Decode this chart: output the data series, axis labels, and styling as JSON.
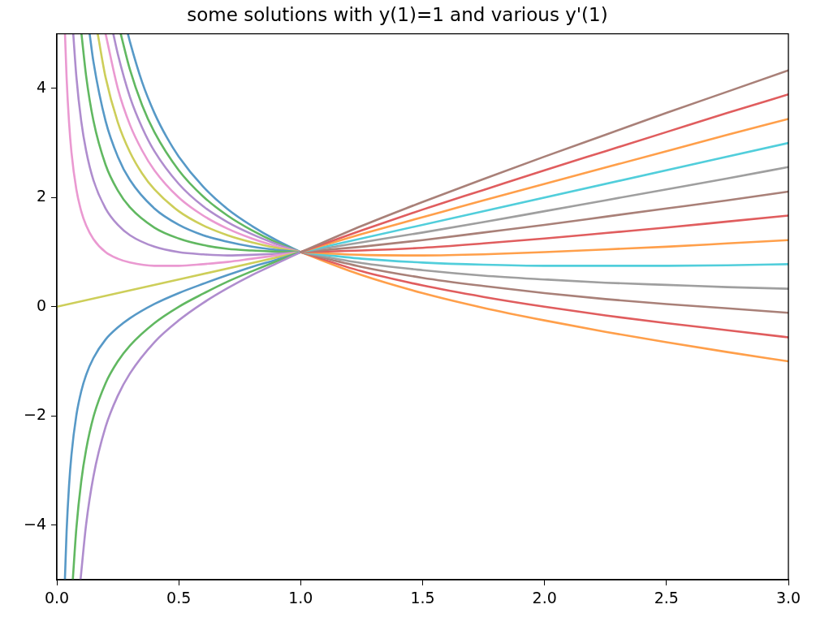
{
  "chart_data": {
    "type": "line",
    "title": "some solutions with y(1)=1 and various y'(1)",
    "xlim": [
      0,
      3
    ],
    "ylim": [
      -5,
      5
    ],
    "xticks": [
      {
        "value": 0,
        "label": "0.0"
      },
      {
        "value": 0.5,
        "label": "0.5"
      },
      {
        "value": 1,
        "label": "1.0"
      },
      {
        "value": 1.5,
        "label": "1.5"
      },
      {
        "value": 2,
        "label": "2.0"
      },
      {
        "value": 2.5,
        "label": "2.5"
      },
      {
        "value": 3,
        "label": "3.0"
      }
    ],
    "yticks": [
      {
        "value": -4,
        "label": "−4"
      },
      {
        "value": -2,
        "label": "−2"
      },
      0,
      2,
      4
    ],
    "grid": false,
    "legend": false,
    "marker": "none",
    "line_style": "solid",
    "series": [
      {
        "color": "#5799c7",
        "x": [
          0.2915,
          0.3,
          0.35,
          0.4,
          0.45,
          0.5,
          0.6,
          0.7,
          0.8,
          0.9,
          1
        ],
        "values": [
          5,
          4.85,
          4.11,
          3.55,
          3.11,
          2.75,
          2.2,
          1.79,
          1.48,
          1.22,
          1
        ]
      },
      {
        "color": "#ff9f4a",
        "x": [
          1,
          1.25,
          1.5,
          1.75,
          2,
          2.25,
          2.5,
          2.75,
          3
        ],
        "values": [
          1,
          0.58,
          0.25,
          -0.02,
          -0.25,
          -0.46,
          -0.65,
          -0.83,
          -1
        ]
      },
      {
        "color": "#61b861",
        "x": [
          0.262,
          0.3,
          0.35,
          0.4,
          0.5,
          0.6,
          0.7,
          0.8,
          0.9,
          1
        ],
        "values": [
          5,
          4.34,
          3.69,
          3.2,
          2.5,
          2.02,
          1.67,
          1.4,
          1.18,
          1
        ]
      },
      {
        "color": "#e05d5e",
        "x": [
          1,
          1.25,
          1.5,
          1.75,
          2,
          2.25,
          2.5,
          2.75,
          3
        ],
        "values": [
          1,
          0.65,
          0.39,
          0.18,
          0,
          -0.16,
          -0.3,
          -0.43,
          -0.56
        ]
      },
      {
        "color": "#af8dce",
        "x": [
          0.2315,
          0.25,
          0.3,
          0.35,
          0.4,
          0.5,
          0.6,
          0.7,
          0.8,
          0.9,
          1
        ],
        "values": [
          5,
          4.63,
          3.84,
          3.28,
          2.85,
          2.25,
          1.84,
          1.55,
          1.33,
          1.15,
          1
        ]
      },
      {
        "color": "#a98078",
        "x": [
          1,
          1.25,
          1.5,
          1.75,
          2,
          2.25,
          2.5,
          2.75,
          3
        ],
        "values": [
          1,
          0.73,
          0.53,
          0.38,
          0.25,
          0.14,
          0.05,
          -0.03,
          -0.11
        ]
      },
      {
        "color": "#ea99d1",
        "x": [
          0.2,
          0.25,
          0.3,
          0.35,
          0.4,
          0.5,
          0.6,
          0.7,
          0.8,
          0.9,
          1
        ],
        "values": [
          5,
          4,
          3.33,
          2.86,
          2.5,
          2,
          1.67,
          1.43,
          1.25,
          1.11,
          1
        ]
      },
      {
        "color": "#9f9f9f",
        "x": [
          1,
          1.25,
          1.5,
          1.75,
          2,
          2.25,
          2.5,
          2.75,
          3
        ],
        "values": [
          1,
          0.8,
          0.67,
          0.57,
          0.5,
          0.44,
          0.4,
          0.36,
          0.33
        ]
      },
      {
        "color": "#cdce59",
        "x": [
          0.1676,
          0.2,
          0.25,
          0.3,
          0.35,
          0.4,
          0.5,
          0.6,
          0.7,
          0.8,
          0.9,
          1
        ],
        "values": [
          5,
          4.2,
          3.38,
          2.83,
          2.44,
          2.15,
          1.75,
          1.49,
          1.31,
          1.18,
          1.08,
          1
        ]
      },
      {
        "color": "#51cedb",
        "x": [
          1,
          1.25,
          1.5,
          1.75,
          2,
          2.25,
          2.5,
          2.75,
          3
        ],
        "values": [
          1,
          0.88,
          0.81,
          0.77,
          0.75,
          0.75,
          0.75,
          0.76,
          0.78
        ]
      },
      {
        "color": "#5799c7",
        "x": [
          0.1345,
          0.15,
          0.2,
          0.25,
          0.3,
          0.4,
          0.5,
          0.6,
          0.7,
          0.8,
          0.9,
          1
        ],
        "values": [
          5,
          4.49,
          3.4,
          2.75,
          2.32,
          1.8,
          1.5,
          1.31,
          1.19,
          1.1,
          1.04,
          1
        ]
      },
      {
        "color": "#ff9f4a",
        "x": [
          1,
          1.25,
          1.5,
          1.75,
          2,
          2.25,
          2.5,
          2.75,
          3
        ],
        "values": [
          1,
          0.95,
          0.94,
          0.96,
          1,
          1.05,
          1.1,
          1.16,
          1.22
        ]
      },
      {
        "color": "#61b861",
        "x": [
          0.101,
          0.12,
          0.15,
          0.2,
          0.25,
          0.3,
          0.4,
          0.5,
          0.6,
          0.7,
          0.8,
          0.9,
          1
        ],
        "values": [
          5,
          4.23,
          3.41,
          2.6,
          2.13,
          1.82,
          1.45,
          1.25,
          1.13,
          1.06,
          1.03,
          1.01,
          1
        ]
      },
      {
        "color": "#e05d5e",
        "x": [
          1,
          1.25,
          1.5,
          1.75,
          2,
          2.25,
          2.5,
          2.75,
          3
        ],
        "values": [
          1,
          1.03,
          1.08,
          1.16,
          1.25,
          1.35,
          1.45,
          1.56,
          1.67
        ]
      },
      {
        "color": "#af8dce",
        "x": [
          0.0673,
          0.08,
          0.1,
          0.12,
          0.15,
          0.2,
          0.25,
          0.3,
          0.4,
          0.5,
          0.6,
          0.7,
          0.8,
          0.9,
          1
        ],
        "values": [
          5,
          4.22,
          3.4,
          2.86,
          2.32,
          1.8,
          1.5,
          1.31,
          1.1,
          1,
          0.96,
          0.94,
          0.95,
          0.97,
          1
        ]
      },
      {
        "color": "#a98078",
        "x": [
          1,
          1.25,
          1.5,
          1.75,
          2,
          2.25,
          2.5,
          2.75,
          3
        ],
        "values": [
          1,
          1.1,
          1.22,
          1.36,
          1.5,
          1.65,
          1.8,
          1.95,
          2.11
        ]
      },
      {
        "color": "#ea99d1",
        "x": [
          0.0335,
          0.04,
          0.05,
          0.06,
          0.08,
          0.1,
          0.12,
          0.15,
          0.2,
          0.25,
          0.3,
          0.4,
          0.5,
          0.6,
          0.7,
          0.8,
          0.9,
          1
        ],
        "values": [
          5,
          4.2,
          3.38,
          2.83,
          2.15,
          1.75,
          1.49,
          1.24,
          1,
          0.88,
          0.81,
          0.75,
          0.75,
          0.78,
          0.82,
          0.88,
          0.94,
          1
        ]
      },
      {
        "color": "#9f9f9f",
        "x": [
          1,
          1.25,
          1.5,
          1.75,
          2,
          2.25,
          2.5,
          2.75,
          3
        ],
        "values": [
          1,
          1.18,
          1.36,
          1.55,
          1.75,
          1.95,
          2.15,
          2.35,
          2.56
        ]
      },
      {
        "color": "#cdce59",
        "x": [
          0,
          1
        ],
        "values": [
          0,
          1
        ]
      },
      {
        "color": "#51cedb",
        "x": [
          1,
          3
        ],
        "values": [
          1,
          3
        ]
      },
      {
        "color": "#5799c7",
        "x": [
          0.0331,
          0.04,
          0.05,
          0.06,
          0.08,
          0.1,
          0.12,
          0.15,
          0.2,
          0.25,
          0.3,
          0.4,
          0.5,
          0.6,
          0.7,
          0.8,
          0.9,
          1
        ],
        "values": [
          -5,
          -4.12,
          -3.28,
          -2.71,
          -1.99,
          -1.55,
          -1.25,
          -0.94,
          -0.6,
          -0.38,
          -0.21,
          0.05,
          0.25,
          0.42,
          0.58,
          0.73,
          0.86,
          1
        ]
      },
      {
        "color": "#ff9f4a",
        "x": [
          1,
          1.25,
          1.5,
          1.75,
          2,
          2.25,
          2.5,
          2.75,
          3
        ],
        "values": [
          1,
          1.33,
          1.64,
          1.95,
          2.25,
          2.55,
          2.85,
          3.15,
          3.44
        ]
      },
      {
        "color": "#61b861",
        "x": [
          0.0655,
          0.08,
          0.1,
          0.12,
          0.15,
          0.2,
          0.25,
          0.3,
          0.4,
          0.5,
          0.6,
          0.7,
          0.8,
          0.9,
          1
        ],
        "values": [
          -5,
          -4.06,
          -3.2,
          -2.62,
          -2.02,
          -1.4,
          -1,
          -0.71,
          -0.3,
          0,
          0.24,
          0.46,
          0.65,
          0.83,
          1
        ]
      },
      {
        "color": "#e05d5e",
        "x": [
          1,
          1.25,
          1.5,
          1.75,
          2,
          2.25,
          2.5,
          2.75,
          3
        ],
        "values": [
          1,
          1.4,
          1.78,
          2.14,
          2.5,
          2.85,
          3.2,
          3.55,
          3.89
        ]
      },
      {
        "color": "#af8dce",
        "x": [
          0.0972,
          0.12,
          0.15,
          0.2,
          0.25,
          0.3,
          0.4,
          0.5,
          0.6,
          0.7,
          0.8,
          0.9,
          1
        ],
        "values": [
          -5,
          -3.99,
          -3.11,
          -2.2,
          -1.63,
          -1.22,
          -0.65,
          -0.25,
          0.07,
          0.34,
          0.58,
          0.79,
          1
        ]
      },
      {
        "color": "#a98078",
        "x": [
          1,
          1.25,
          1.5,
          1.75,
          2,
          2.25,
          2.5,
          2.75,
          3
        ],
        "values": [
          1,
          1.48,
          1.92,
          2.34,
          2.75,
          3.15,
          3.55,
          3.94,
          4.33
        ]
      }
    ]
  }
}
